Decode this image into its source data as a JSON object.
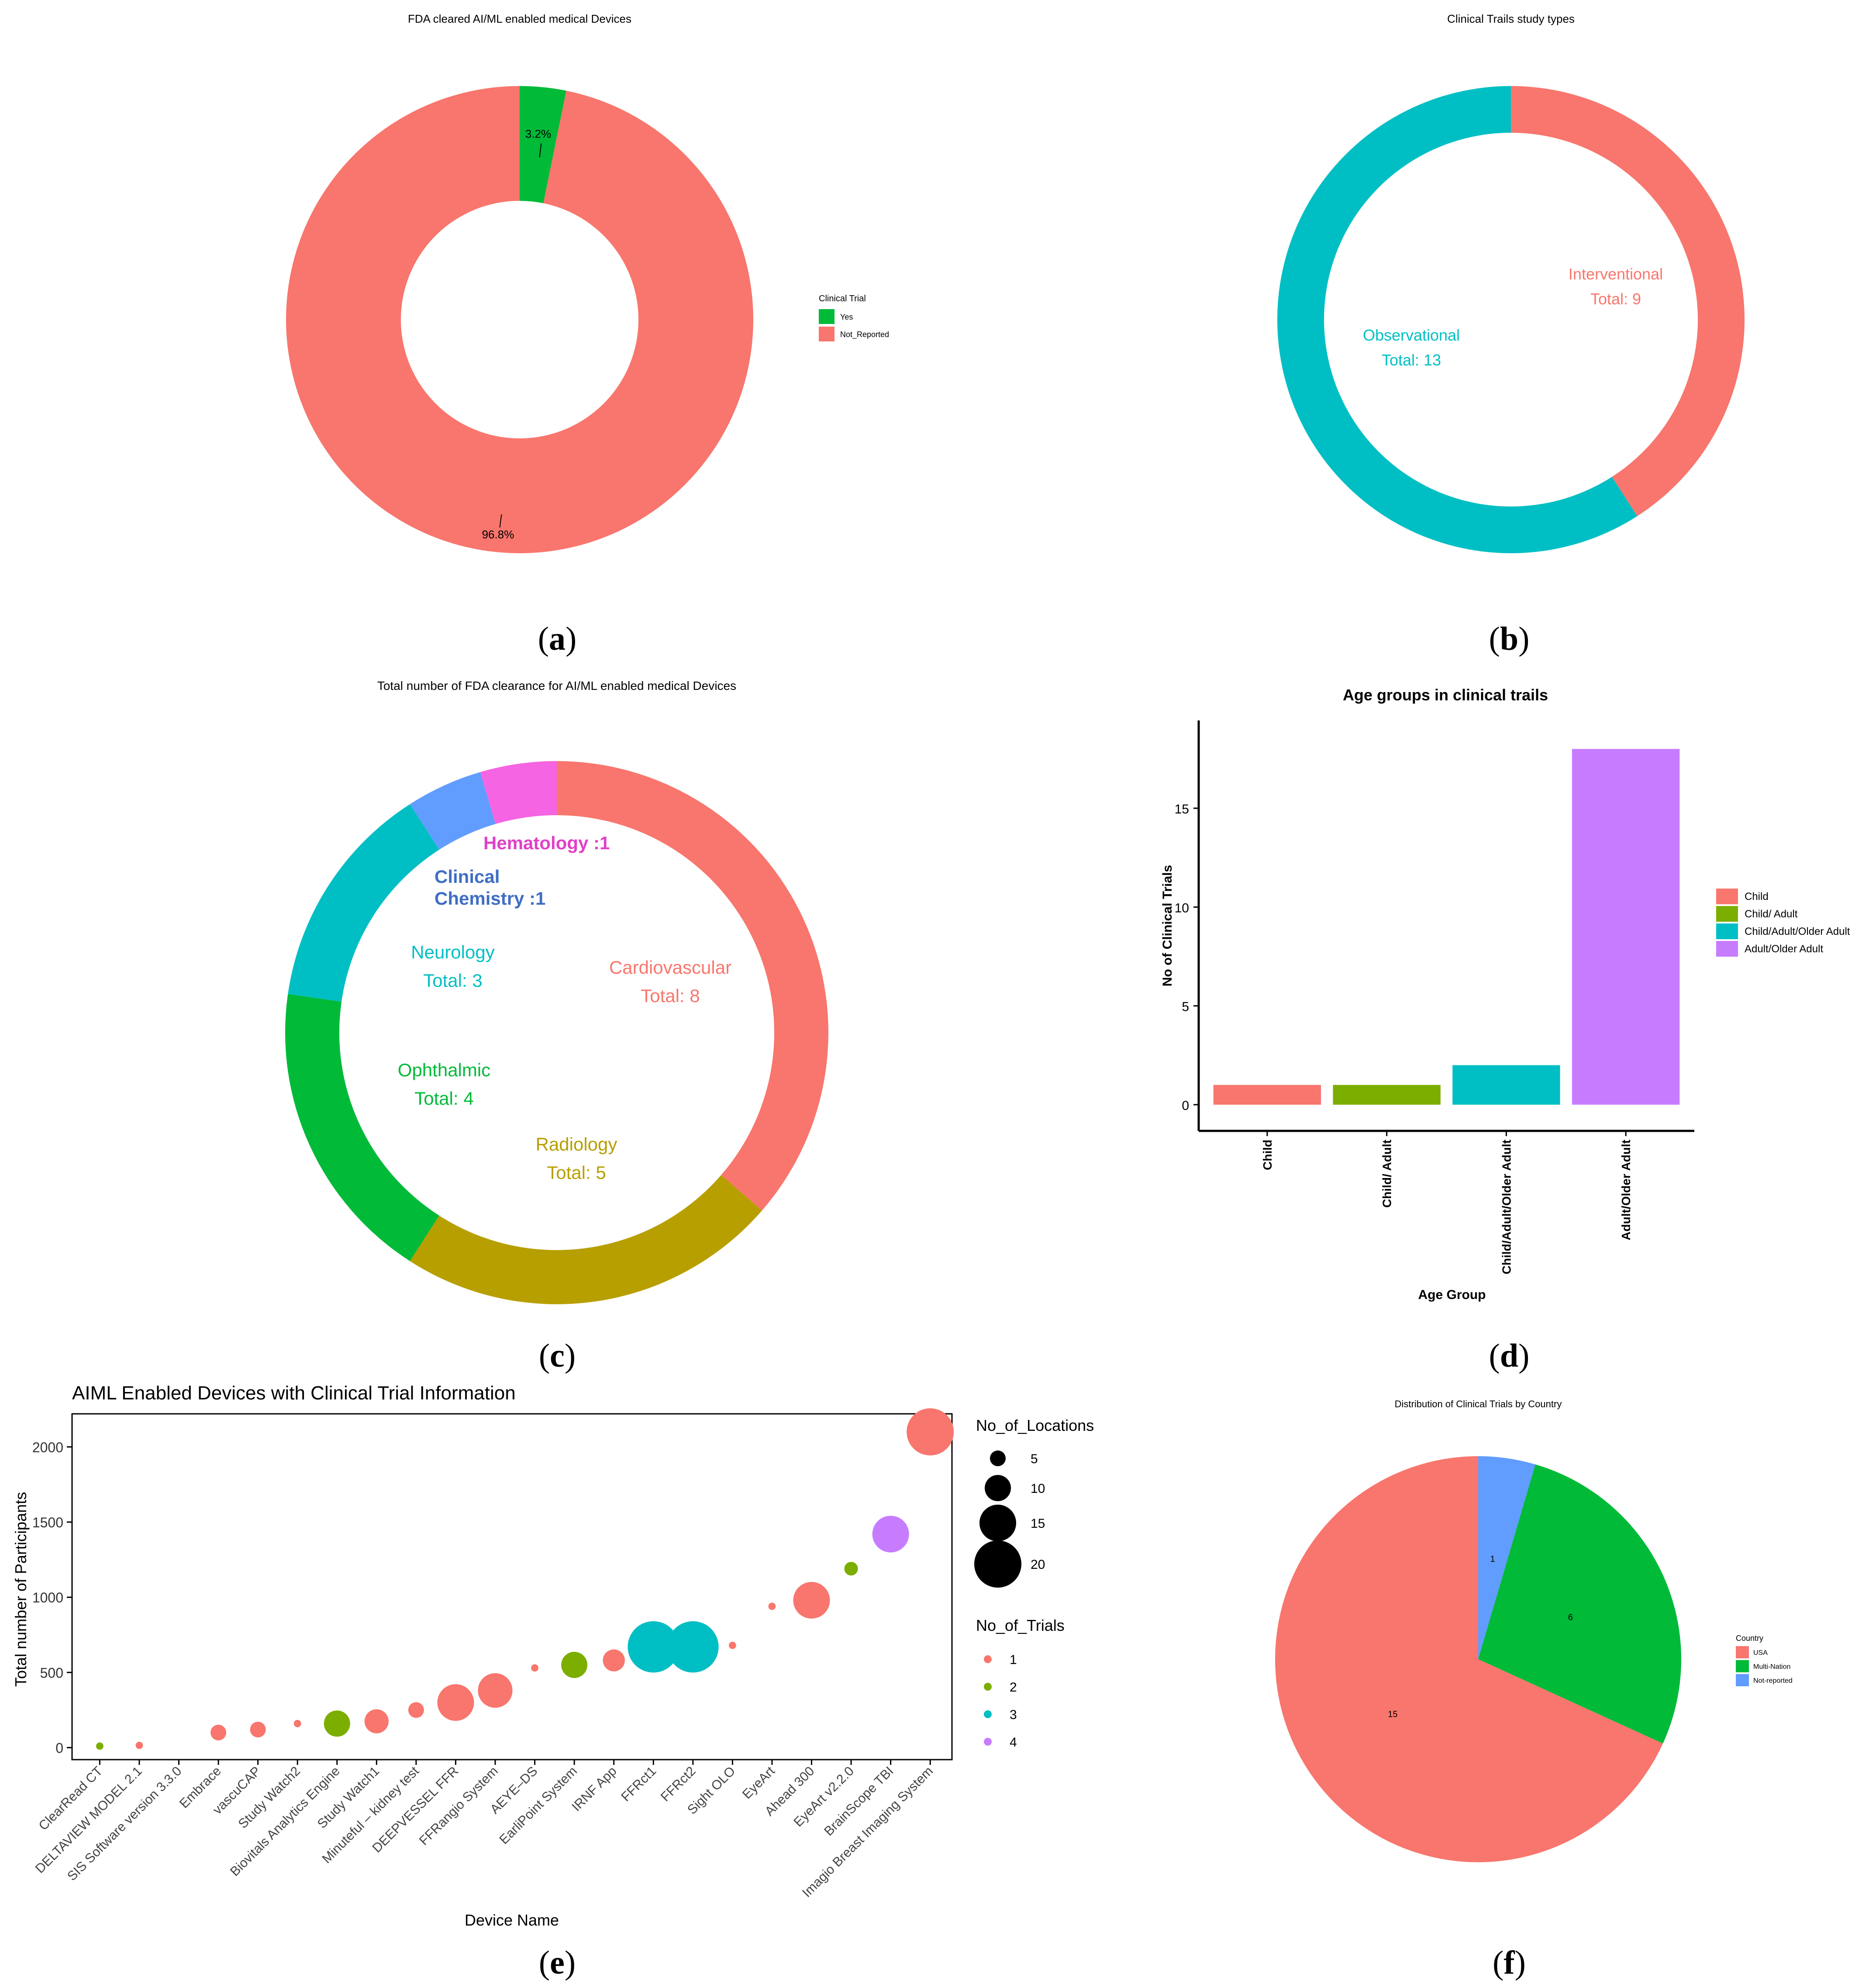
{
  "chart_data": [
    {
      "type": "pie",
      "panel": "(a)",
      "variant": "donut",
      "title": "FDA cleared AI/ML enabled medical Devices",
      "legend_title": "Clinical Trial",
      "legend_position": "right",
      "slices": [
        {
          "label": "Yes",
          "value": 3.2,
          "text": "3.2%",
          "color": "#00BA38"
        },
        {
          "label": "Not_Reported",
          "value": 96.8,
          "text": "96.8%",
          "color": "#F8766D"
        }
      ]
    },
    {
      "type": "pie",
      "panel": "(b)",
      "variant": "donut",
      "title": "Clinical Trails study types",
      "slices": [
        {
          "label": "Interventional",
          "total_text": "Total: 9",
          "value": 9,
          "color": "#F8766D"
        },
        {
          "label": "Observational",
          "total_text": "Total: 13",
          "value": 13,
          "color": "#00BFC4"
        }
      ]
    },
    {
      "type": "pie",
      "panel": "(c)",
      "variant": "donut",
      "title": "Total number of FDA clearance for AI/ML enabled medical Devices",
      "slices": [
        {
          "label": "Cardiovascular",
          "total_text": "Total: 8",
          "value": 8,
          "color": "#F8766D"
        },
        {
          "label": "Radiology",
          "total_text": "Total: 5",
          "value": 5,
          "color": "#B79F00"
        },
        {
          "label": "Ophthalmic",
          "total_text": "Total: 4",
          "value": 4,
          "color": "#00BA38"
        },
        {
          "label": "Neurology",
          "total_text": "Total: 3",
          "value": 3,
          "color": "#00BFC4"
        },
        {
          "label": "Clinical Chemistry",
          "label_lines": [
            "Clinical",
            "Chemistry :1"
          ],
          "value": 1,
          "color": "#619CFF",
          "text_color": "#3F6EC4"
        },
        {
          "label": "Hematology",
          "label_lines": [
            "Hematology :1"
          ],
          "value": 1,
          "color": "#F564E3",
          "text_color": "#E040C8"
        }
      ]
    },
    {
      "type": "bar",
      "panel": "(d)",
      "title": "Age groups in clinical trails",
      "xlabel": "Age Group",
      "ylabel": "No of Clinical Trials",
      "categories": [
        "Child",
        "Child/ Adult",
        "Child/Adult/Older Adult",
        "Adult/Older Adult"
      ],
      "values": [
        1,
        1,
        2,
        18
      ],
      "colors": [
        "#F8766D",
        "#7CAE00",
        "#00BFC4",
        "#C77CFF"
      ],
      "ylim": [
        0,
        19
      ],
      "yticks": [
        0,
        5,
        10,
        15
      ],
      "legend_position": "right"
    },
    {
      "type": "scatter",
      "panel": "(e)",
      "title": "AIML Enabled Devices with Clinical Trial Information",
      "xlabel": "Device Name",
      "ylabel": "Total number of Participants",
      "ylim": [
        -80,
        2220
      ],
      "yticks": [
        0,
        500,
        1000,
        1500,
        2000
      ],
      "size_legend_title": "No_of_Locations",
      "size_legend": [
        5,
        10,
        15,
        20
      ],
      "color_legend_title": "No_of_Trials",
      "color_legend": [
        {
          "value": 1,
          "color": "#F8766D"
        },
        {
          "value": 2,
          "color": "#7CAE00"
        },
        {
          "value": 3,
          "color": "#00BFC4"
        },
        {
          "value": 4,
          "color": "#C77CFF"
        }
      ],
      "points": [
        {
          "device": "ClearRead CT",
          "participants": 10,
          "locations": 1,
          "trials": 2
        },
        {
          "device": "DELTAVIEW MODEL 2.1",
          "participants": 15,
          "locations": 1,
          "trials": 1
        },
        {
          "device": "SIS Software version 3.3.0",
          "participants": null,
          "locations": null,
          "trials": null
        },
        {
          "device": "Embrace",
          "participants": 100,
          "locations": 5,
          "trials": 1
        },
        {
          "device": "vascuCAP",
          "participants": 120,
          "locations": 5,
          "trials": 1
        },
        {
          "device": "Study Watch2",
          "participants": 160,
          "locations": 1,
          "trials": 1
        },
        {
          "device": "Biovitals Analytics Engine",
          "participants": 160,
          "locations": 10,
          "trials": 2
        },
        {
          "device": "Study Watch1",
          "participants": 175,
          "locations": 9,
          "trials": 1
        },
        {
          "device": "Minuteful – kidney test",
          "participants": 250,
          "locations": 5,
          "trials": 1
        },
        {
          "device": "DEEPVESSEL FFR",
          "participants": 300,
          "locations": 15,
          "trials": 1
        },
        {
          "device": "FFRangio System",
          "participants": 380,
          "locations": 14,
          "trials": 1
        },
        {
          "device": "AEYE–DS",
          "participants": 530,
          "locations": 1,
          "trials": 1
        },
        {
          "device": "EarliPoint System",
          "participants": 550,
          "locations": 10,
          "trials": 2
        },
        {
          "device": "IRNF App",
          "participants": 580,
          "locations": 8,
          "trials": 1
        },
        {
          "device": "FFRct1",
          "participants": 670,
          "locations": 22,
          "trials": 3
        },
        {
          "device": "FFRct2",
          "participants": 670,
          "locations": 22,
          "trials": 3
        },
        {
          "device": "Sight OLO",
          "participants": 680,
          "locations": 1,
          "trials": 1
        },
        {
          "device": "EyeArt",
          "participants": 940,
          "locations": 1,
          "trials": 1
        },
        {
          "device": "Ahead 300",
          "participants": 980,
          "locations": 15,
          "trials": 1
        },
        {
          "device": "EyeArt v2.2.0",
          "participants": 1190,
          "locations": 4,
          "trials": 2
        },
        {
          "device": "BrainScope TBI",
          "participants": 1420,
          "locations": 15,
          "trials": 4
        },
        {
          "device": "Imagio Breast Imaging System",
          "participants": 2100,
          "locations": 20,
          "trials": 1
        }
      ]
    },
    {
      "type": "pie",
      "panel": "(f)",
      "title": "Distribution of Clinical Trials by Country",
      "legend_title": "Country",
      "legend_position": "right",
      "slices": [
        {
          "label": "Not-reported",
          "value": 1,
          "color": "#619CFF"
        },
        {
          "label": "Multi-Nation",
          "value": 6,
          "color": "#00BA38"
        },
        {
          "label": "USA",
          "value": 15,
          "color": "#F8766D"
        }
      ]
    }
  ],
  "captions": {
    "a": "(a)",
    "b": "(b)",
    "c": "(c)",
    "d": "(d)",
    "e": "(e)",
    "f": "(f)"
  }
}
